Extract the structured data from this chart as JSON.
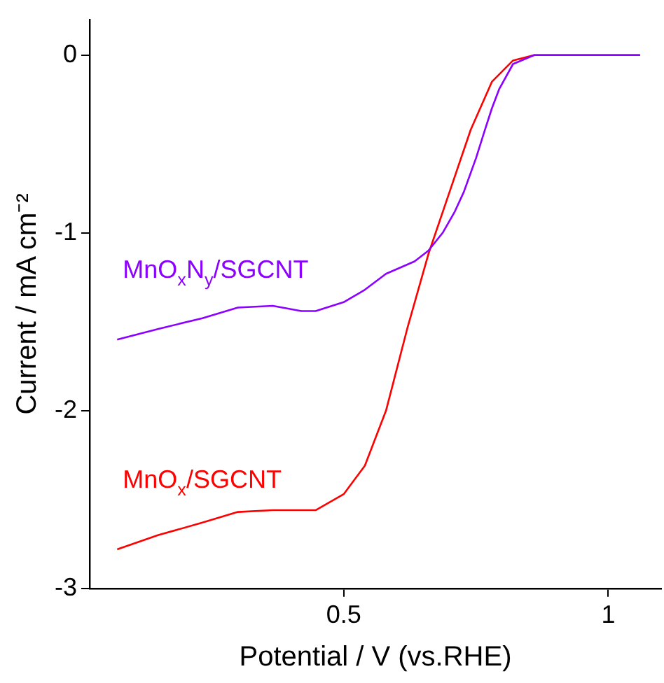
{
  "chart_data": {
    "type": "line",
    "xlabel": "Potential / V (vs.RHE)",
    "ylabel": "Current / mA cm⁻²",
    "xlim": [
      0.02,
      1.1
    ],
    "xticks": [
      0.5,
      1
    ],
    "ylim": [
      -3,
      0.2
    ],
    "yticks": [
      -3,
      -2,
      -1,
      0
    ],
    "grid": false,
    "legend": false,
    "marker": "none",
    "line_style": "solid",
    "series": [
      {
        "name": "MnO$_{x}$N$_{y}$/SGCNT",
        "color": "#8b00ff",
        "x": [
          0.072,
          0.15,
          0.233,
          0.3,
          0.366,
          0.42,
          0.447,
          0.5,
          0.54,
          0.58,
          0.634,
          0.66,
          0.687,
          0.71,
          0.727,
          0.75,
          0.767,
          0.78,
          0.794,
          0.82,
          0.86,
          0.95,
          1.06
        ],
        "values": [
          -1.6,
          -1.54,
          -1.48,
          -1.42,
          -1.41,
          -1.44,
          -1.44,
          -1.39,
          -1.32,
          -1.23,
          -1.16,
          -1.1,
          -1.0,
          -0.88,
          -0.77,
          -0.58,
          -0.42,
          -0.3,
          -0.19,
          -0.05,
          0,
          0,
          0
        ]
      },
      {
        "name": "MnO$_{x}$/SGCNT",
        "color": "#ff0000",
        "x": [
          0.072,
          0.15,
          0.233,
          0.3,
          0.366,
          0.42,
          0.447,
          0.5,
          0.54,
          0.58,
          0.62,
          0.66,
          0.7,
          0.74,
          0.78,
          0.82,
          0.86,
          0.95,
          1.06
        ],
        "values": [
          -2.78,
          -2.7,
          -2.63,
          -2.57,
          -2.56,
          -2.56,
          -2.56,
          -2.47,
          -2.31,
          -2.0,
          -1.54,
          -1.12,
          -0.77,
          -0.42,
          -0.15,
          -0.03,
          0,
          0,
          0
        ]
      }
    ]
  }
}
